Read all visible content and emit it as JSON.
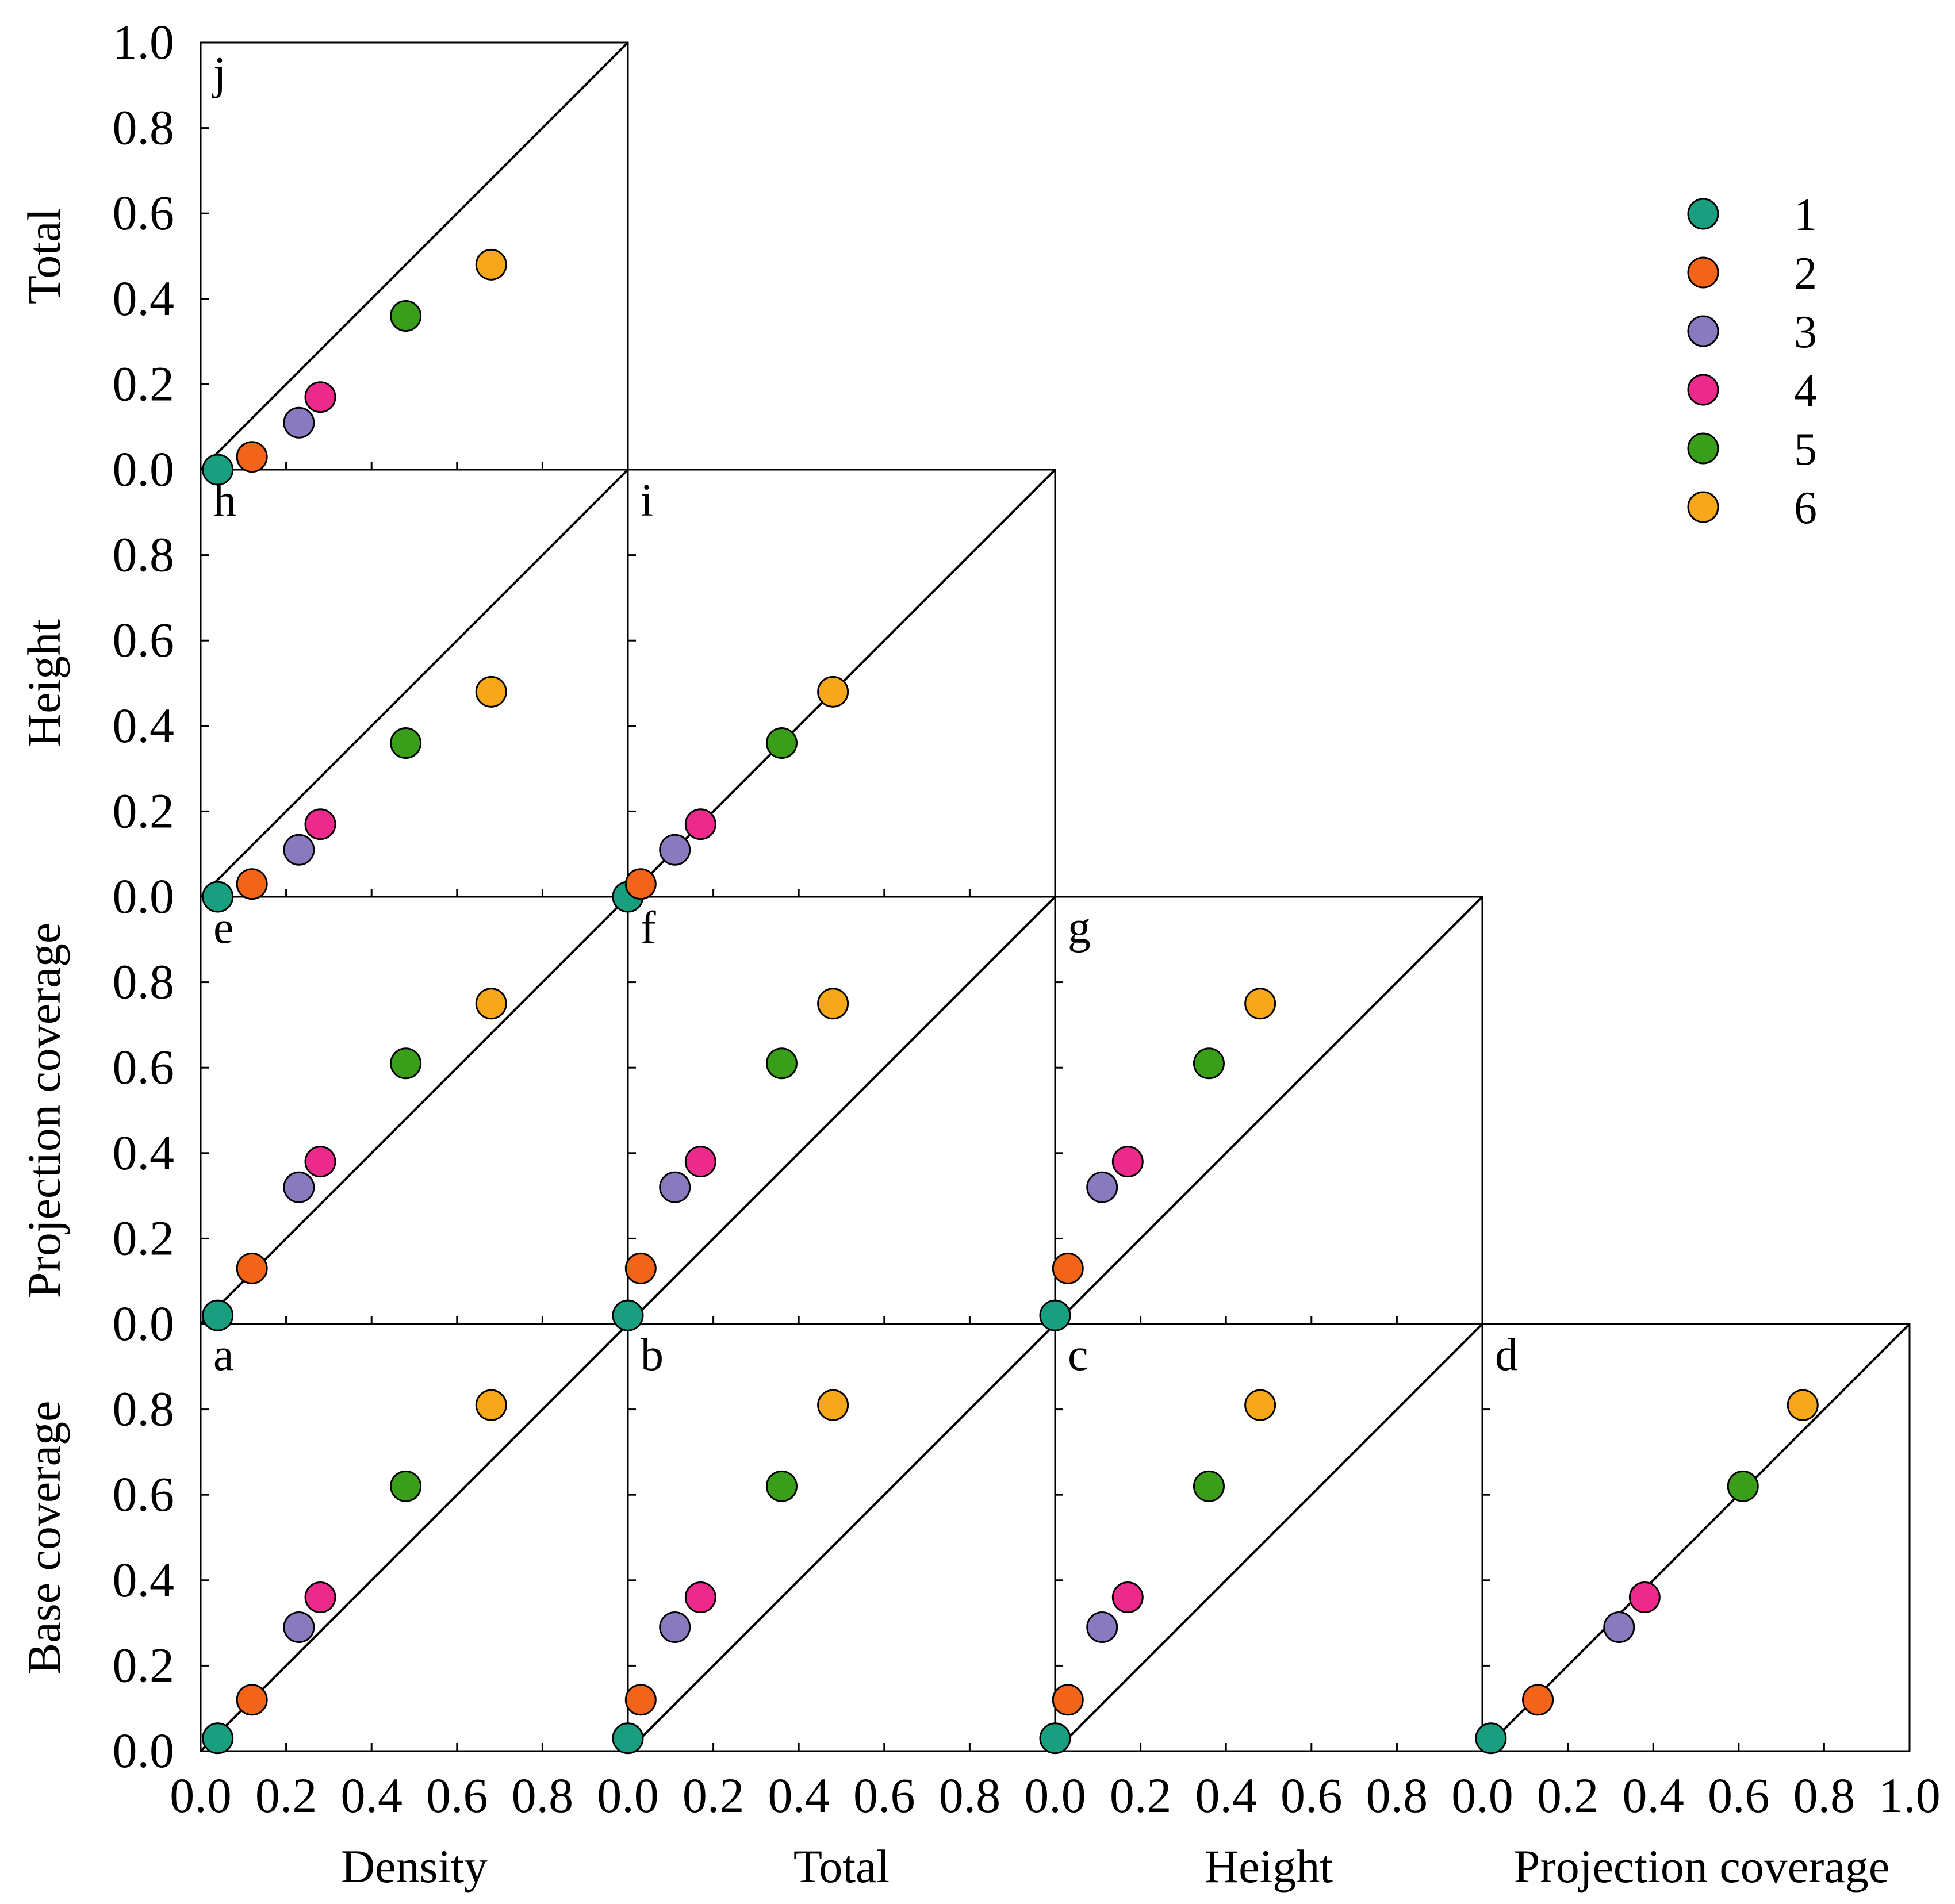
{
  "colors": {
    "1": "#1a9e80",
    "2": "#f26419",
    "3": "#8979bf",
    "4": "#ec2a8b",
    "5": "#3a9e1a",
    "6": "#f6a81a"
  },
  "chart_data": {
    "type": "scatter",
    "layout": "lower-triangle pairwise matrix",
    "axis_range": [
      0,
      1
    ],
    "x_ticks": [
      "0.0",
      "0.2",
      "0.4",
      "0.6",
      "0.8"
    ],
    "x_ticks_last": [
      "0.0",
      "0.2",
      "0.4",
      "0.6",
      "0.8",
      "1.0"
    ],
    "y_ticks": [
      "0.0",
      "0.2",
      "0.4",
      "0.6",
      "0.8"
    ],
    "y_ticks_top": [
      "0.0",
      "0.2",
      "0.4",
      "0.6",
      "0.8",
      "1.0"
    ],
    "x_labels": [
      "Density",
      "Total",
      "Height",
      "Projection coverage"
    ],
    "y_labels": [
      "Base coverage",
      "Projection coverage",
      "Height",
      "Total"
    ],
    "variables": {
      "Density": [
        0.04,
        0.12,
        0.23,
        0.28,
        0.48,
        0.68
      ],
      "Total": [
        0.0,
        0.03,
        0.11,
        0.17,
        0.36,
        0.48
      ],
      "Height": [
        0.0,
        0.03,
        0.11,
        0.17,
        0.36,
        0.48
      ],
      "Projection coverage": [
        0.02,
        0.13,
        0.32,
        0.38,
        0.61,
        0.75
      ],
      "Base coverage": [
        0.03,
        0.12,
        0.29,
        0.36,
        0.62,
        0.81
      ]
    },
    "panels": [
      {
        "letter": "a",
        "x": "Density",
        "y": "Base coverage"
      },
      {
        "letter": "b",
        "x": "Total",
        "y": "Base coverage"
      },
      {
        "letter": "c",
        "x": "Height",
        "y": "Base coverage"
      },
      {
        "letter": "d",
        "x": "Projection coverage",
        "y": "Base coverage"
      },
      {
        "letter": "e",
        "x": "Density",
        "y": "Projection coverage"
      },
      {
        "letter": "f",
        "x": "Total",
        "y": "Projection coverage"
      },
      {
        "letter": "g",
        "x": "Height",
        "y": "Projection coverage"
      },
      {
        "letter": "h",
        "x": "Density",
        "y": "Height"
      },
      {
        "letter": "i",
        "x": "Total",
        "y": "Height"
      },
      {
        "letter": "j",
        "x": "Density",
        "y": "Total"
      }
    ],
    "legend": {
      "position": "top-right",
      "entries": [
        {
          "label": "1",
          "color_key": "1"
        },
        {
          "label": "2",
          "color_key": "2"
        },
        {
          "label": "3",
          "color_key": "3"
        },
        {
          "label": "4",
          "color_key": "4"
        },
        {
          "label": "5",
          "color_key": "5"
        },
        {
          "label": "6",
          "color_key": "6"
        }
      ]
    },
    "reference_line": "y = x"
  }
}
